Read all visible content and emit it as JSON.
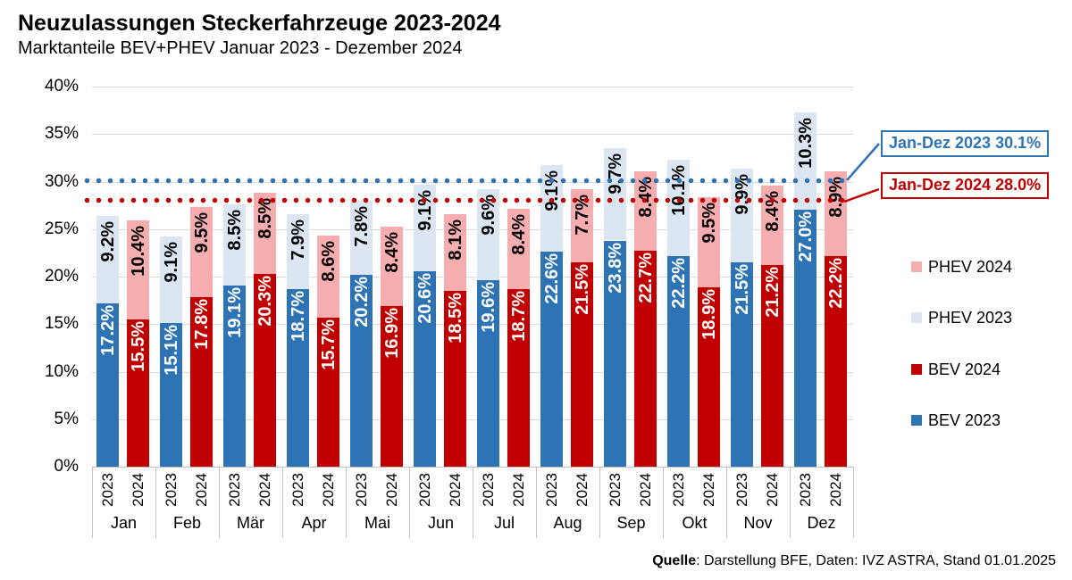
{
  "title": "Neuzulassungen Steckerfahrzeuge 2023-2024",
  "subtitle": "Marktanteile BEV+PHEV Januar 2023 - Dezember 2024",
  "source": {
    "label_bold": "Quelle",
    "label_rest": ": Darstellung BFE, Daten: IVZ ASTRA, Stand 01.01.2025"
  },
  "legend": [
    {
      "label": "PHEV 2024",
      "color": "#F5ADB0"
    },
    {
      "label": "PHEV 2023",
      "color": "#DCE6F2"
    },
    {
      "label": "BEV 2024",
      "color": "#C00000"
    },
    {
      "label": "BEV 2023",
      "color": "#2E74B5"
    }
  ],
  "annotations": [
    {
      "label": "Jan-Dez 2023 30.1%",
      "value": 30.1,
      "color": "#2E74B5"
    },
    {
      "label": "Jan-Dez 2024 28.0%",
      "value": 28.0,
      "color": "#C00000"
    }
  ],
  "colors": {
    "bev_2023": "#2E74B5",
    "bev_2024": "#C00000",
    "phev_2023": "#DCE6F2",
    "phev_2024": "#F5ADB0",
    "gridline": "#D9D9D9",
    "axis": "#BFBFBF"
  },
  "chart_data": {
    "type": "bar",
    "stacked": true,
    "title": "Neuzulassungen Steckerfahrzeuge 2023-2024",
    "subtitle": "Marktanteile BEV+PHEV Januar 2023 - Dezember 2024",
    "categories": [
      "Jan",
      "Feb",
      "Mär",
      "Apr",
      "Mai",
      "Jun",
      "Jul",
      "Aug",
      "Sep",
      "Okt",
      "Nov",
      "Dez"
    ],
    "bar_years": [
      "2023",
      "2024"
    ],
    "yticks": [
      "0%",
      "5%",
      "10%",
      "15%",
      "20%",
      "25%",
      "30%",
      "35%",
      "40%"
    ],
    "ylim": [
      0,
      40
    ],
    "grid": true,
    "legend_position": "right",
    "series": [
      {
        "name": "BEV 2023",
        "color": "#2E74B5",
        "values": [
          17.2,
          15.1,
          19.1,
          18.7,
          20.2,
          20.6,
          19.6,
          22.6,
          23.8,
          22.2,
          21.5,
          27.0
        ]
      },
      {
        "name": "PHEV 2023",
        "color": "#DCE6F2",
        "values": [
          9.2,
          9.1,
          8.5,
          7.9,
          7.8,
          9.1,
          9.6,
          9.1,
          9.7,
          10.1,
          9.9,
          10.3
        ]
      },
      {
        "name": "BEV 2024",
        "color": "#C00000",
        "values": [
          15.5,
          17.8,
          20.3,
          15.7,
          16.9,
          18.5,
          18.7,
          21.5,
          22.7,
          18.9,
          21.2,
          22.2
        ]
      },
      {
        "name": "PHEV 2024",
        "color": "#F5ADB0",
        "values": [
          10.4,
          9.5,
          8.5,
          8.6,
          8.4,
          8.1,
          8.4,
          7.7,
          8.4,
          9.5,
          8.4,
          8.9
        ]
      }
    ],
    "reference_lines": [
      {
        "name": "Jan-Dez 2023",
        "value": 30.1,
        "color": "#2E74B5"
      },
      {
        "name": "Jan-Dez 2024",
        "value": 28.0,
        "color": "#C00000"
      }
    ]
  }
}
